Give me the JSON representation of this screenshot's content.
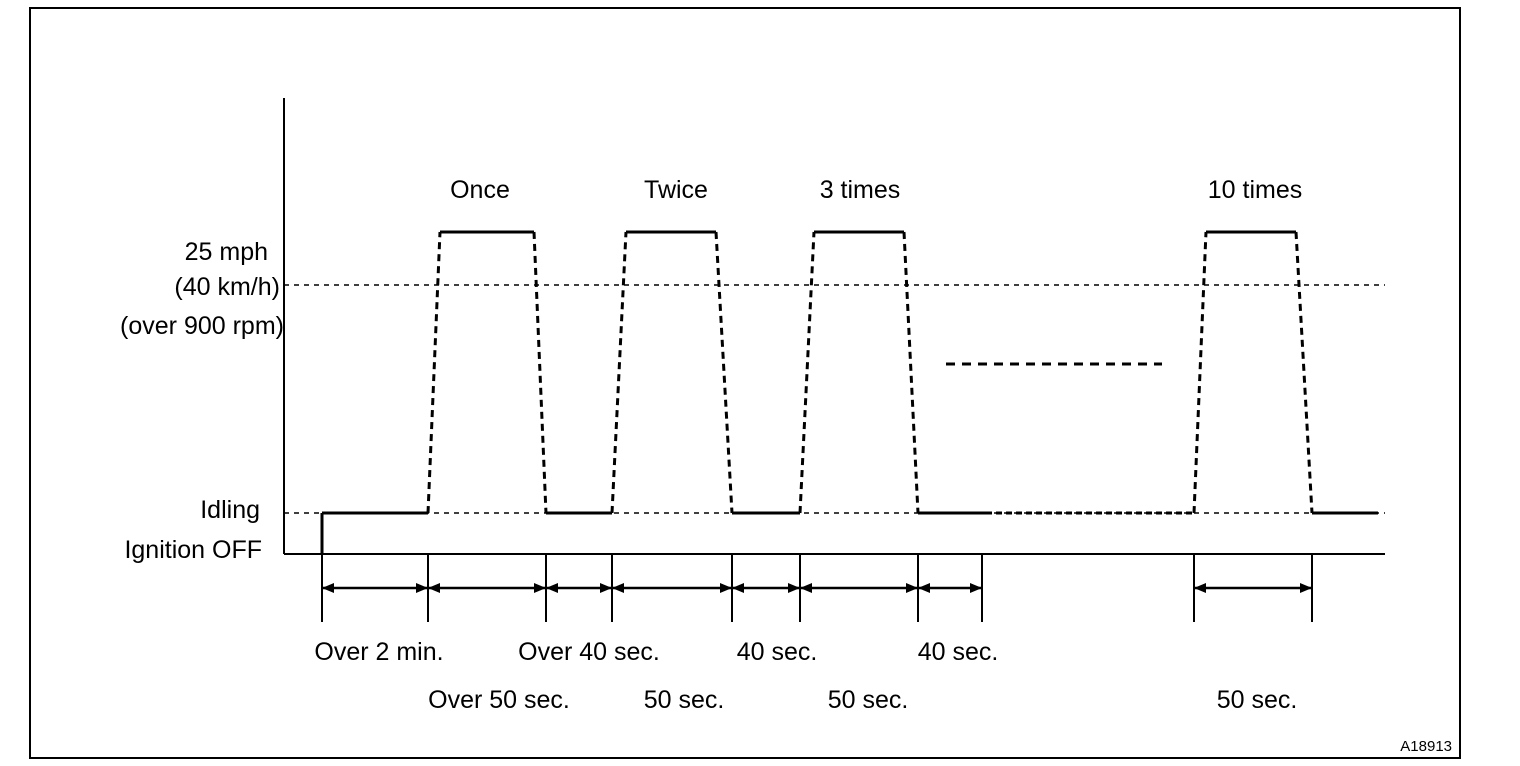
{
  "y_axis": {
    "speed_line1": "25 mph",
    "speed_line2": "(40 km/h)",
    "speed_line3": "(over 900 rpm)",
    "idle": "Idling",
    "ignition": "Ignition OFF"
  },
  "cycles": {
    "once": "Once",
    "twice": "Twice",
    "three": "3 times",
    "ten": "10 times"
  },
  "durations": {
    "over_2_min": "Over 2 min.",
    "over_50_sec": "Over 50 sec.",
    "over_40_sec": "Over 40 sec.",
    "fifty_sec_a": "50 sec.",
    "forty_sec_a": "40 sec.",
    "fifty_sec_b": "50 sec.",
    "forty_sec_b": "40 sec.",
    "fifty_sec_c": "50 sec."
  },
  "figure_code": "A18913"
}
